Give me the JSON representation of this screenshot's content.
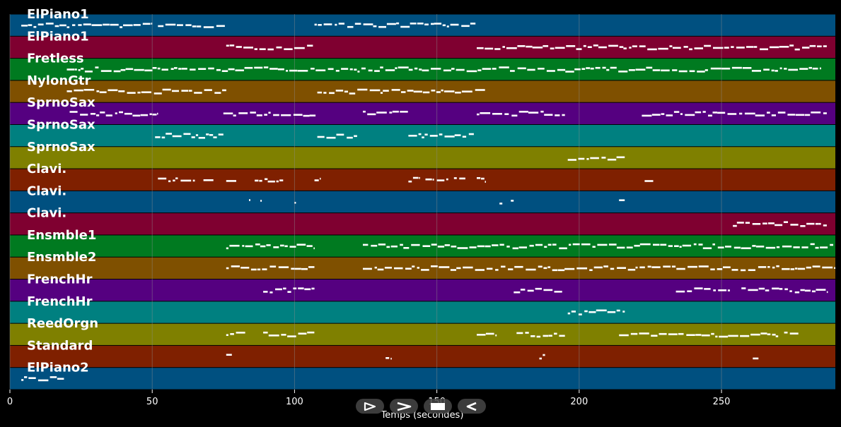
{
  "chart_data": {
    "type": "piano-roll",
    "xlabel": "Temps (secondes)",
    "xlim": [
      0,
      290
    ],
    "xticks": [
      0,
      50,
      100,
      150,
      200,
      250
    ],
    "grid": true,
    "colors": {
      "background": "#000000",
      "note": "#ffffff",
      "grid": "#8c8c8c"
    },
    "track_colors": [
      "#005080",
      "#7f0030",
      "#007a20",
      "#7f5000",
      "#550080",
      "#008080",
      "#7f8000",
      "#7f2000"
    ],
    "tracks": [
      {
        "name": "ElPiano1",
        "segments": [
          [
            4,
            50
          ],
          [
            52,
            76
          ],
          [
            107,
            164
          ]
        ]
      },
      {
        "name": "ElPiano1",
        "segments": [
          [
            76,
            107
          ],
          [
            164,
            287
          ]
        ]
      },
      {
        "name": "Fretless",
        "segments": [
          [
            20,
            285
          ]
        ]
      },
      {
        "name": "NylonGtr",
        "segments": [
          [
            20,
            76
          ],
          [
            108,
            167
          ]
        ]
      },
      {
        "name": "SprnoSax",
        "segments": [
          [
            21,
            52
          ],
          [
            75,
            108
          ],
          [
            124,
            140
          ],
          [
            164,
            195
          ],
          [
            222,
            287
          ]
        ]
      },
      {
        "name": "SprnoSax",
        "segments": [
          [
            51,
            75
          ],
          [
            108,
            122
          ],
          [
            140,
            163
          ]
        ]
      },
      {
        "name": "SprnoSax",
        "segments": [
          [
            196,
            216
          ]
        ]
      },
      {
        "name": "Clavi.",
        "segments": [
          [
            52,
            59
          ],
          [
            60,
            65
          ],
          [
            68,
            72
          ],
          [
            76,
            80
          ],
          [
            86,
            96
          ],
          [
            107,
            109
          ],
          [
            140,
            144
          ],
          [
            146,
            149
          ],
          [
            150,
            154
          ],
          [
            156,
            160
          ],
          [
            164,
            167
          ],
          [
            223,
            226
          ]
        ]
      },
      {
        "name": "Clavi.",
        "segments": [
          [
            84,
            84.5
          ],
          [
            88,
            88.5
          ],
          [
            100,
            100.5
          ],
          [
            172,
            173
          ],
          [
            176,
            177
          ],
          [
            214,
            216
          ]
        ]
      },
      {
        "name": "Clavi.",
        "segments": [
          [
            254,
            287
          ]
        ]
      },
      {
        "name": "Ensmble1",
        "segments": [
          [
            76,
            107
          ],
          [
            124,
            290
          ]
        ]
      },
      {
        "name": "Ensmble2",
        "segments": [
          [
            76,
            107
          ],
          [
            124,
            290
          ]
        ]
      },
      {
        "name": "FrenchHr",
        "segments": [
          [
            89,
            107
          ],
          [
            177,
            194
          ],
          [
            234,
            253
          ],
          [
            257,
            287
          ]
        ]
      },
      {
        "name": "FrenchHr",
        "segments": [
          [
            196,
            216
          ]
        ]
      },
      {
        "name": "ReedOrgn",
        "segments": [
          [
            76,
            83
          ],
          [
            89,
            107
          ],
          [
            164,
            171
          ],
          [
            178,
            195
          ],
          [
            214,
            270
          ],
          [
            272,
            277
          ]
        ]
      },
      {
        "name": "Standard",
        "segments": [
          [
            76,
            78
          ],
          [
            132,
            134
          ],
          [
            186,
            188
          ],
          [
            261,
            263
          ]
        ]
      },
      {
        "name": "ElPiano2",
        "segments": [
          [
            4,
            19
          ]
        ]
      }
    ]
  },
  "controls": [
    {
      "name": "play-button",
      "icon": "play-outline-icon"
    },
    {
      "name": "next-button",
      "icon": "chevron-right-icon"
    },
    {
      "name": "stop-button",
      "icon": "stop-icon"
    },
    {
      "name": "previous-button",
      "icon": "triangle-left-icon"
    }
  ]
}
